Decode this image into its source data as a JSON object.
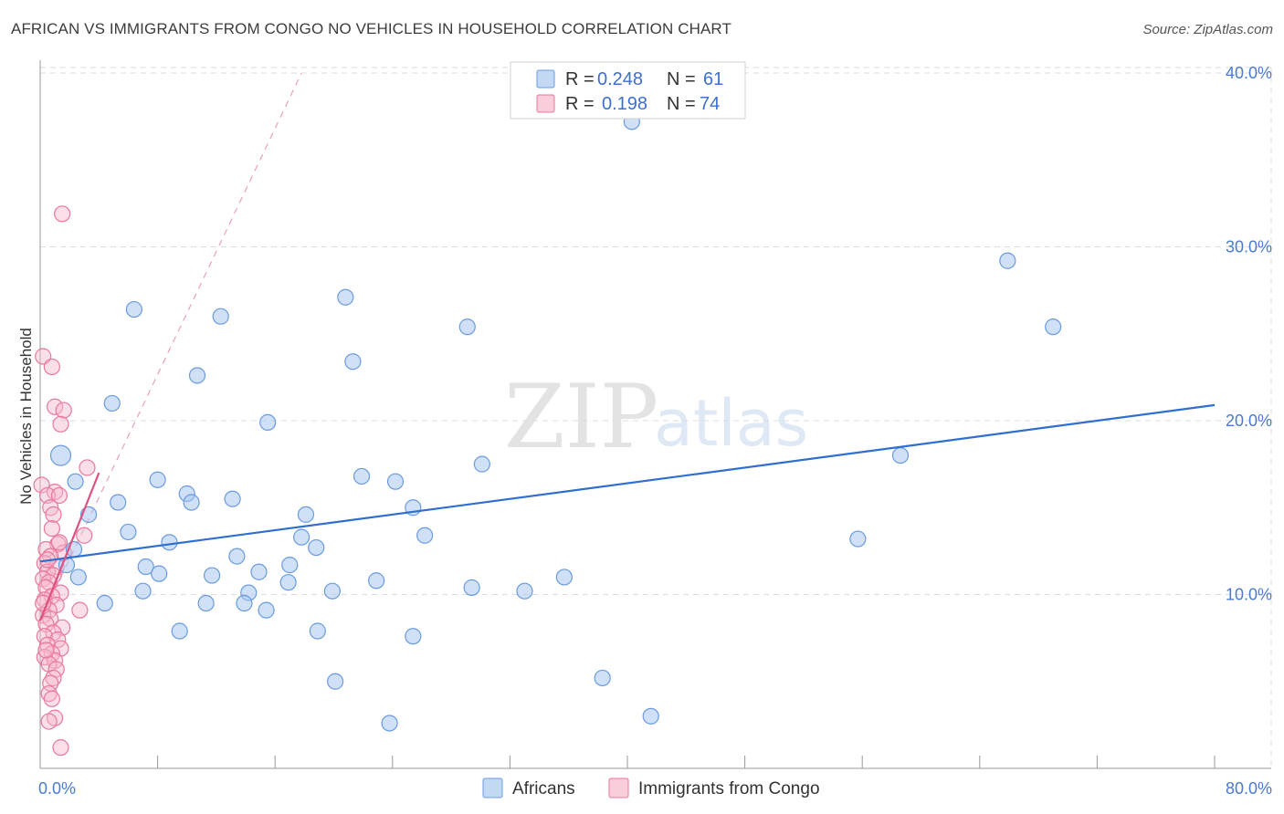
{
  "title": "AFRICAN VS IMMIGRANTS FROM CONGO NO VEHICLES IN HOUSEHOLD CORRELATION CHART",
  "source": "Source: ZipAtlas.com",
  "watermark": {
    "zip": "ZIP",
    "atlas": "atlas"
  },
  "colors": {
    "blue_fill": "#aac7ee",
    "blue_stroke": "#6a9be0",
    "blue_line": "#2f6fcf",
    "pink_fill": "#f6b8cb",
    "pink_stroke": "#e8789c",
    "pink_line": "#e0507f",
    "grid": "#dcdcdc",
    "tick_text": "#4a7bd0"
  },
  "legend_top": {
    "rows": [
      {
        "r_label": "R =",
        "r_value": "0.248",
        "n_label": "N =",
        "n_value": "61"
      },
      {
        "r_label": "R =",
        "r_value": "0.198",
        "n_label": "N =",
        "n_value": "74"
      }
    ]
  },
  "legend_bottom": [
    "Africans",
    "Immigrants from Congo"
  ],
  "chart_data": {
    "type": "scatter",
    "title": "AFRICAN VS IMMIGRANTS FROM CONGO NO VEHICLES IN HOUSEHOLD CORRELATION CHART",
    "xlabel": "",
    "ylabel": "No Vehicles in Household",
    "xlim": [
      0,
      80
    ],
    "ylim": [
      0,
      40
    ],
    "x_ticks": [
      "0.0%",
      "80.0%"
    ],
    "y_ticks": [
      "10.0%",
      "20.0%",
      "30.0%",
      "40.0%"
    ],
    "y_tick_values": [
      10,
      20,
      30,
      40
    ],
    "grid": true,
    "series": [
      {
        "name": "Africans",
        "r": 0.248,
        "n": 61,
        "trend": {
          "x0": 0,
          "y0": 11.9,
          "x1": 80,
          "y1": 20.9
        },
        "points": [
          [
            40.3,
            37.2
          ],
          [
            1.4,
            18.0
          ],
          [
            6.4,
            26.4
          ],
          [
            12.3,
            26.0
          ],
          [
            20.8,
            27.1
          ],
          [
            29.1,
            25.4
          ],
          [
            21.3,
            23.4
          ],
          [
            10.7,
            22.6
          ],
          [
            4.9,
            21.0
          ],
          [
            15.5,
            19.9
          ],
          [
            65.9,
            29.2
          ],
          [
            69.0,
            25.4
          ],
          [
            58.6,
            18.0
          ],
          [
            30.1,
            17.5
          ],
          [
            21.9,
            16.8
          ],
          [
            8.0,
            16.6
          ],
          [
            2.4,
            16.5
          ],
          [
            24.2,
            16.5
          ],
          [
            10.0,
            15.8
          ],
          [
            13.1,
            15.5
          ],
          [
            10.3,
            15.3
          ],
          [
            5.3,
            15.3
          ],
          [
            25.4,
            15.0
          ],
          [
            3.3,
            14.6
          ],
          [
            18.1,
            14.6
          ],
          [
            6.0,
            13.6
          ],
          [
            26.2,
            13.4
          ],
          [
            17.8,
            13.3
          ],
          [
            8.8,
            13.0
          ],
          [
            55.7,
            13.2
          ],
          [
            18.8,
            12.7
          ],
          [
            2.3,
            12.6
          ],
          [
            13.4,
            12.2
          ],
          [
            1.8,
            11.7
          ],
          [
            7.2,
            11.6
          ],
          [
            14.9,
            11.3
          ],
          [
            17.0,
            11.7
          ],
          [
            8.1,
            11.2
          ],
          [
            11.7,
            11.1
          ],
          [
            2.6,
            11.0
          ],
          [
            35.7,
            11.0
          ],
          [
            22.9,
            10.8
          ],
          [
            16.9,
            10.7
          ],
          [
            29.4,
            10.4
          ],
          [
            7.0,
            10.2
          ],
          [
            19.9,
            10.2
          ],
          [
            33.0,
            10.2
          ],
          [
            14.2,
            10.1
          ],
          [
            11.3,
            9.5
          ],
          [
            13.9,
            9.5
          ],
          [
            4.4,
            9.5
          ],
          [
            15.4,
            9.1
          ],
          [
            9.5,
            7.9
          ],
          [
            18.9,
            7.9
          ],
          [
            25.4,
            7.6
          ],
          [
            38.3,
            5.2
          ],
          [
            20.1,
            5.0
          ],
          [
            41.6,
            3.0
          ],
          [
            23.8,
            2.6
          ]
        ]
      },
      {
        "name": "Immigrants from Congo",
        "r": 0.198,
        "n": 74,
        "trend": {
          "x0": 0,
          "y0": 8.5,
          "x1": 4.0,
          "y1": 17.0
        },
        "trend_extension": {
          "x0": 0,
          "y0": 8.5,
          "x1": 17.8,
          "y1": 40.0
        },
        "points": [
          [
            1.5,
            31.9
          ],
          [
            0.2,
            23.7
          ],
          [
            0.8,
            23.1
          ],
          [
            1.0,
            20.8
          ],
          [
            1.6,
            20.6
          ],
          [
            1.4,
            19.8
          ],
          [
            3.2,
            17.3
          ],
          [
            0.1,
            16.3
          ],
          [
            1.0,
            15.9
          ],
          [
            0.5,
            15.7
          ],
          [
            1.3,
            15.7
          ],
          [
            0.7,
            15.0
          ],
          [
            0.9,
            14.6
          ],
          [
            0.8,
            13.8
          ],
          [
            3.0,
            13.4
          ],
          [
            1.2,
            12.9
          ],
          [
            0.4,
            12.6
          ],
          [
            1.6,
            12.4
          ],
          [
            0.7,
            12.2
          ],
          [
            0.3,
            11.8
          ],
          [
            1.1,
            11.6
          ],
          [
            0.5,
            11.3
          ],
          [
            0.9,
            11.1
          ],
          [
            0.2,
            10.9
          ],
          [
            0.6,
            10.7
          ],
          [
            0.4,
            10.4
          ],
          [
            1.4,
            10.1
          ],
          [
            0.8,
            9.9
          ],
          [
            0.3,
            9.7
          ],
          [
            1.1,
            9.4
          ],
          [
            0.6,
            9.1
          ],
          [
            2.7,
            9.1
          ],
          [
            0.2,
            8.8
          ],
          [
            0.7,
            8.6
          ],
          [
            0.4,
            8.3
          ],
          [
            1.5,
            8.1
          ],
          [
            0.9,
            7.8
          ],
          [
            0.3,
            7.6
          ],
          [
            1.2,
            7.4
          ],
          [
            0.5,
            7.1
          ],
          [
            1.4,
            6.9
          ],
          [
            0.8,
            6.6
          ],
          [
            0.3,
            6.4
          ],
          [
            1.0,
            6.2
          ],
          [
            0.6,
            6.0
          ],
          [
            1.1,
            5.7
          ],
          [
            0.9,
            5.2
          ],
          [
            0.7,
            4.9
          ],
          [
            0.6,
            4.3
          ],
          [
            0.8,
            4.0
          ],
          [
            1.0,
            2.9
          ],
          [
            0.6,
            2.7
          ],
          [
            1.4,
            1.2
          ],
          [
            0.4,
            6.8
          ],
          [
            0.2,
            9.5
          ],
          [
            0.5,
            12.0
          ],
          [
            1.3,
            13.0
          ]
        ]
      }
    ]
  }
}
